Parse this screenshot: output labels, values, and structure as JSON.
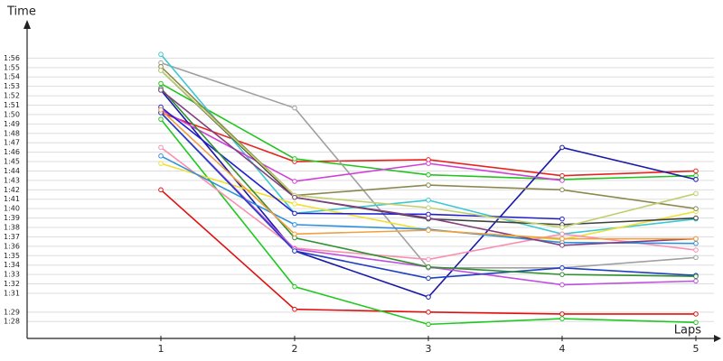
{
  "chart_data": {
    "type": "line",
    "x_label": "Laps",
    "y_label": "Time",
    "x": [
      1,
      2,
      3,
      4,
      5
    ],
    "xlim": [
      0,
      5
    ],
    "xticks": [
      1,
      2,
      3,
      4,
      5
    ],
    "ylim": [
      86.2,
      119.3
    ],
    "yticks": [
      {
        "value": 88,
        "label": "1:28"
      },
      {
        "value": 89,
        "label": "1:29"
      },
      {
        "value": 91,
        "label": "1:31"
      },
      {
        "value": 92,
        "label": "1:32"
      },
      {
        "value": 93,
        "label": "1:33"
      },
      {
        "value": 94,
        "label": "1:34"
      },
      {
        "value": 95,
        "label": "1:35"
      },
      {
        "value": 96,
        "label": "1:36"
      },
      {
        "value": 97,
        "label": "1:37"
      },
      {
        "value": 98,
        "label": "1:38"
      },
      {
        "value": 99,
        "label": "1:39"
      },
      {
        "value": 100,
        "label": "1:40"
      },
      {
        "value": 101,
        "label": "1:41"
      },
      {
        "value": 102,
        "label": "1:42"
      },
      {
        "value": 103,
        "label": "1:43"
      },
      {
        "value": 104,
        "label": "1:44"
      },
      {
        "value": 105,
        "label": "1:45"
      },
      {
        "value": 106,
        "label": "1:46"
      },
      {
        "value": 107,
        "label": "1:47"
      },
      {
        "value": 108,
        "label": "1:48"
      },
      {
        "value": 109,
        "label": "1:49"
      },
      {
        "value": 110,
        "label": "1:50"
      },
      {
        "value": 111,
        "label": "1:51"
      },
      {
        "value": 112,
        "label": "1:52"
      },
      {
        "value": 113,
        "label": "1:53"
      },
      {
        "value": 114,
        "label": "1:54"
      },
      {
        "value": 115,
        "label": "1:55"
      },
      {
        "value": 116,
        "label": "1:56"
      }
    ],
    "grid": true,
    "series": [
      {
        "color": "#e8231f",
        "values": [
          110.2,
          105.0,
          105.2,
          103.5,
          104.0
        ]
      },
      {
        "color": "#22c41e",
        "values": [
          113.3,
          105.3,
          103.6,
          103.1,
          103.5
        ]
      },
      {
        "color": "#a0a0a0",
        "values": [
          115.5,
          110.7,
          93.7,
          93.7,
          94.8
        ]
      },
      {
        "color": "#3cc8d0",
        "values": [
          116.4,
          99.5,
          100.9,
          97.3,
          98.9
        ]
      },
      {
        "color": "#1a1aa8",
        "values": [
          112.6,
          95.5,
          90.6,
          106.5,
          103.1
        ]
      },
      {
        "color": "#e01010",
        "values": [
          102.0,
          89.3,
          89.0,
          88.8,
          88.8
        ]
      },
      {
        "color": "#20c820",
        "values": [
          109.5,
          91.7,
          87.7,
          88.3,
          87.9
        ]
      },
      {
        "color": "#f0e030",
        "values": [
          104.8,
          100.5,
          97.7,
          96.7,
          99.7
        ]
      },
      {
        "color": "#f890b0",
        "values": [
          106.5,
          95.8,
          94.6,
          97.3,
          95.6
        ]
      },
      {
        "color": "#d040d8",
        "values": [
          110.5,
          102.9,
          104.8,
          103.0,
          null
        ]
      },
      {
        "color": "#8a8a50",
        "values": [
          115.1,
          101.4,
          102.5,
          102.0,
          100.0
        ]
      },
      {
        "color": "#404040",
        "values": [
          114.7,
          101.2,
          98.9,
          98.3,
          99.0
        ]
      },
      {
        "color": "#2020d0",
        "values": [
          110.8,
          99.5,
          99.4,
          98.9,
          null
        ]
      },
      {
        "color": "#3090e0",
        "values": [
          105.6,
          98.3,
          97.8,
          96.4,
          96.3
        ]
      },
      {
        "color": "#c050e0",
        "values": [
          110.2,
          95.7,
          93.8,
          91.9,
          92.3
        ]
      },
      {
        "color": "#2040c0",
        "values": [
          110.2,
          95.5,
          92.6,
          93.7,
          92.9
        ]
      },
      {
        "color": "#309030",
        "values": [
          112.8,
          96.9,
          93.8,
          93.0,
          92.8
        ]
      },
      {
        "color": "#c0d070",
        "values": [
          114.7,
          101.4,
          100.1,
          98.0,
          101.6
        ]
      },
      {
        "color": "#804080",
        "values": [
          112.6,
          101.2,
          99.0,
          96.1,
          96.8
        ]
      },
      {
        "color": "#f0a040",
        "values": [
          110.5,
          97.3,
          97.7,
          96.8,
          96.8
        ]
      }
    ]
  }
}
